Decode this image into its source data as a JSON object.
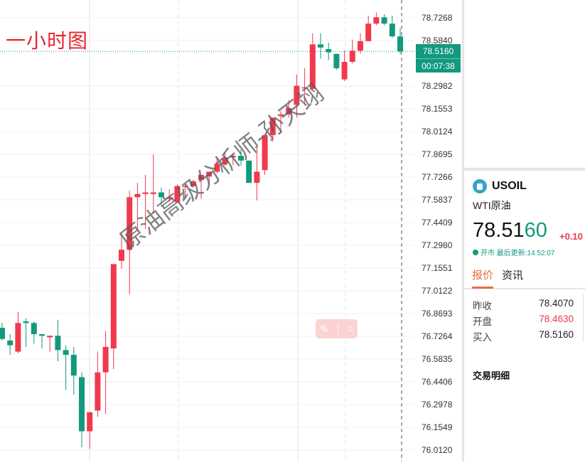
{
  "chart_title": "一小时图",
  "watermark": "原油高级分析师-孙天翊",
  "colors": {
    "up": "#f0394d",
    "down": "#12997f",
    "accent": "#e8703a"
  },
  "price_axis": {
    "ticks": [
      "78.7268",
      "78.5840",
      "78.2982",
      "78.1553",
      "78.0124",
      "77.8695",
      "77.7266",
      "77.5837",
      "77.4409",
      "77.2980",
      "77.1551",
      "77.0122",
      "76.8693",
      "76.7264",
      "76.5835",
      "76.4406",
      "76.2978",
      "76.1549",
      "76.0120"
    ],
    "current_price": "78.5160",
    "countdown": "00:07:38"
  },
  "chart_data": {
    "type": "candlestick",
    "interval": "1h",
    "ylim": [
      76.012,
      78.7268
    ],
    "grid": true,
    "fields": [
      "open",
      "high",
      "low",
      "close"
    ],
    "candles": [
      [
        76.78,
        76.81,
        76.7,
        76.71
      ],
      [
        76.7,
        76.74,
        76.61,
        76.67
      ],
      [
        76.63,
        76.88,
        76.62,
        76.81
      ],
      [
        76.82,
        76.84,
        76.66,
        76.81
      ],
      [
        76.81,
        76.82,
        76.68,
        76.74
      ],
      [
        76.74,
        76.74,
        76.65,
        76.73
      ],
      [
        76.72,
        76.73,
        76.63,
        76.73
      ],
      [
        76.73,
        76.83,
        76.57,
        76.64
      ],
      [
        76.64,
        76.67,
        76.39,
        76.61
      ],
      [
        76.61,
        76.66,
        76.36,
        76.48
      ],
      [
        76.47,
        76.5,
        76.03,
        76.13
      ],
      [
        76.13,
        76.25,
        76.02,
        76.25
      ],
      [
        76.26,
        76.63,
        76.22,
        76.5
      ],
      [
        76.5,
        76.76,
        76.24,
        76.66
      ],
      [
        76.65,
        77.18,
        76.52,
        77.18
      ],
      [
        77.2,
        77.37,
        77.15,
        77.27
      ],
      [
        77.27,
        77.64,
        76.99,
        77.6
      ],
      [
        77.6,
        77.69,
        77.39,
        77.62
      ],
      [
        77.62,
        77.74,
        77.4,
        77.63
      ],
      [
        77.62,
        77.87,
        77.5,
        77.63
      ],
      [
        77.63,
        77.66,
        77.54,
        77.6
      ],
      [
        77.59,
        77.65,
        77.57,
        77.6
      ],
      [
        77.57,
        77.68,
        77.57,
        77.67
      ],
      [
        77.67,
        77.68,
        77.59,
        77.67
      ],
      [
        77.67,
        77.71,
        77.66,
        77.7
      ],
      [
        77.71,
        77.74,
        77.59,
        77.74
      ],
      [
        77.73,
        77.76,
        77.68,
        77.76
      ],
      [
        77.76,
        77.85,
        77.75,
        77.81
      ],
      [
        77.81,
        77.88,
        77.8,
        77.85
      ],
      [
        77.85,
        77.87,
        77.8,
        77.86
      ],
      [
        77.86,
        77.9,
        77.8,
        77.83
      ],
      [
        77.83,
        77.83,
        77.69,
        77.69
      ],
      [
        77.69,
        77.91,
        77.58,
        77.76
      ],
      [
        77.77,
        77.99,
        77.74,
        77.99
      ],
      [
        77.99,
        78.1,
        77.95,
        78.1
      ],
      [
        78.11,
        78.14,
        78.0,
        78.12
      ],
      [
        78.12,
        78.21,
        78.1,
        78.16
      ],
      [
        78.18,
        78.37,
        78.1,
        78.3
      ],
      [
        78.29,
        78.41,
        78.18,
        78.29
      ],
      [
        78.28,
        78.63,
        78.27,
        78.56
      ],
      [
        78.56,
        78.63,
        78.47,
        78.54
      ],
      [
        78.53,
        78.57,
        78.46,
        78.51
      ],
      [
        78.5,
        78.5,
        78.4,
        78.41
      ],
      [
        78.34,
        78.52,
        78.33,
        78.45
      ],
      [
        78.45,
        78.59,
        78.44,
        78.52
      ],
      [
        78.52,
        78.63,
        78.5,
        78.58
      ],
      [
        78.58,
        78.74,
        78.58,
        78.69
      ],
      [
        78.69,
        78.76,
        78.68,
        78.73
      ],
      [
        78.73,
        78.75,
        78.68,
        78.69
      ],
      [
        78.69,
        78.74,
        78.6,
        78.61
      ],
      [
        78.61,
        78.66,
        78.5,
        78.516
      ]
    ]
  },
  "quote": {
    "symbol": "USOIL",
    "icon": "oil-drop-icon",
    "name": "WTI原油",
    "price_main": "78.51",
    "price_tail": "60",
    "change": "+0.10",
    "status": "开市",
    "updated": "最后更新:14:52:07",
    "tabs": [
      {
        "label": "报价",
        "active": true
      },
      {
        "label": "资讯",
        "active": false
      }
    ],
    "rows": [
      {
        "label": "昨收",
        "value": "78.4070",
        "color": "#222222"
      },
      {
        "label": "开盘",
        "value": "78.4630",
        "color": "#e8394a"
      },
      {
        "label": "买入",
        "value": "78.5160",
        "color": "#222222"
      }
    ],
    "section": "交易明细"
  }
}
